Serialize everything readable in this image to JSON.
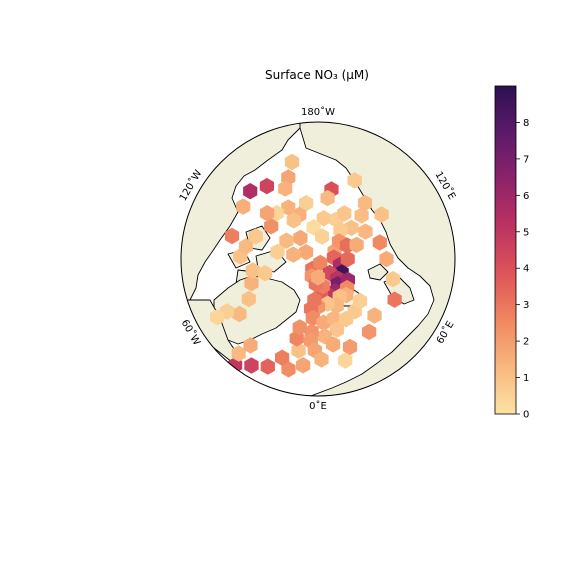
{
  "title": "Surface NO₃ (μM)",
  "longitude_labels": [
    {
      "text": "180˚W",
      "lon": 180
    },
    {
      "text": "120˚E",
      "lon": 120
    },
    {
      "text": "60˚E",
      "lon": 60
    },
    {
      "text": "0˚E",
      "lon": 0
    },
    {
      "text": "60˚W",
      "lon": -60
    },
    {
      "text": "120˚W",
      "lon": -120
    }
  ],
  "colorbar": {
    "min": 0,
    "max": 9,
    "ticks": [
      0,
      1,
      2,
      3,
      4,
      5,
      6,
      7,
      8
    ],
    "colormap": "magma_r",
    "stops": [
      "#fde3a4",
      "#f9b77f",
      "#f08760",
      "#de5459",
      "#bc3362",
      "#8d2369",
      "#5c1a6b",
      "#2c1050"
    ]
  },
  "colors": {
    "land": "#efefdc",
    "ocean": "#ffffff",
    "coast": "#000000",
    "frame": "#000000"
  },
  "chart_data": {
    "type": "heatmap",
    "projection": "north-polar-stereographic",
    "variable": "Surface NO₃",
    "units": "μM",
    "vmin": 0,
    "vmax": 9,
    "cells": [
      {
        "lat": 74.5,
        "lon": 169,
        "value": 4.0
      },
      {
        "lat": 76.5,
        "lon": 171,
        "value": 1.2
      },
      {
        "lat": 77.5,
        "lon": -168,
        "value": 0.6
      },
      {
        "lat": 79.5,
        "lon": -157,
        "value": 1.5
      },
      {
        "lat": 80.0,
        "lon": -148,
        "value": 1.0
      },
      {
        "lat": 77.0,
        "lon": -150,
        "value": 1.4
      },
      {
        "lat": 76.5,
        "lon": -138,
        "value": 0.4
      },
      {
        "lat": 77.5,
        "lon": -125,
        "value": 2.3
      },
      {
        "lat": 75.0,
        "lon": -132,
        "value": 1.8
      },
      {
        "lat": 81.0,
        "lon": 172,
        "value": 0.8
      },
      {
        "lat": 83.0,
        "lon": -172,
        "value": 0.2
      },
      {
        "lat": 80.5,
        "lon": 155,
        "value": 0.6
      },
      {
        "lat": 78.5,
        "lon": 150,
        "value": 0.9
      },
      {
        "lat": 80.0,
        "lon": 133,
        "value": 1.0
      },
      {
        "lat": 82.0,
        "lon": 142,
        "value": 0.7
      },
      {
        "lat": 76.5,
        "lon": 135,
        "value": 1.1
      },
      {
        "lat": 78.0,
        "lon": 120,
        "value": 1.3
      },
      {
        "lat": 84.0,
        "lon": -140,
        "value": 1.7
      },
      {
        "lat": 85.0,
        "lon": 170,
        "value": 0.5
      },
      {
        "lat": 86.0,
        "lon": 115,
        "value": 1.8
      },
      {
        "lat": 84.0,
        "lon": 130,
        "value": 2.2
      },
      {
        "lat": 83.0,
        "lon": 115,
        "value": 3.2
      },
      {
        "lat": 81.0,
        "lon": 110,
        "value": 1.6
      },
      {
        "lat": 86.5,
        "lon": 95,
        "value": 3.4
      },
      {
        "lat": 85.0,
        "lon": 75,
        "value": 5.6
      },
      {
        "lat": 83.5,
        "lon": 90,
        "value": 3.3
      },
      {
        "lat": 87.0,
        "lon": -120,
        "value": 1.7
      },
      {
        "lat": 84.5,
        "lon": -100,
        "value": 1.4
      },
      {
        "lat": 82.0,
        "lon": -120,
        "value": 1.2
      },
      {
        "lat": 81.0,
        "lon": -100,
        "value": 0.6
      },
      {
        "lat": 87.5,
        "lon": -30,
        "value": 3.1
      },
      {
        "lat": 89.0,
        "lon": 30,
        "value": 2.6
      },
      {
        "lat": 84.0,
        "lon": 60,
        "value": 8.5
      },
      {
        "lat": 86.0,
        "lon": 40,
        "value": 4.3
      },
      {
        "lat": 86.0,
        "lon": -20,
        "value": 2.2
      },
      {
        "lat": 84.0,
        "lon": 45,
        "value": 5.2
      },
      {
        "lat": 83.0,
        "lon": 38,
        "value": 7.0
      },
      {
        "lat": 82.0,
        "lon": 28,
        "value": 6.0
      },
      {
        "lat": 81.5,
        "lon": 18,
        "value": 5.0
      },
      {
        "lat": 82.5,
        "lon": 5,
        "value": 3.6
      },
      {
        "lat": 84.0,
        "lon": 10,
        "value": 2.8
      },
      {
        "lat": 84.5,
        "lon": -5,
        "value": 3.0
      },
      {
        "lat": 86.0,
        "lon": 0,
        "value": 1.6
      },
      {
        "lat": 82.0,
        "lon": 55,
        "value": 6.0
      },
      {
        "lat": 81.0,
        "lon": 45,
        "value": 2.5
      },
      {
        "lat": 80.0,
        "lon": 38,
        "value": 1.5
      },
      {
        "lat": 80.5,
        "lon": 30,
        "value": 1.0
      },
      {
        "lat": 79.0,
        "lon": 22,
        "value": 1.3
      },
      {
        "lat": 80.0,
        "lon": 12,
        "value": 0.9
      },
      {
        "lat": 79.5,
        "lon": 0,
        "value": 2.2
      },
      {
        "lat": 81.0,
        "lon": -5,
        "value": 3.0
      },
      {
        "lat": 79.0,
        "lon": -8,
        "value": 3.0
      },
      {
        "lat": 77.0,
        "lon": -5,
        "value": 2.4
      },
      {
        "lat": 76.0,
        "lon": 5,
        "value": 1.6
      },
      {
        "lat": 76.5,
        "lon": 15,
        "value": 1.3
      },
      {
        "lat": 75.5,
        "lon": 25,
        "value": 0.8
      },
      {
        "lat": 76.0,
        "lon": 35,
        "value": 0.8
      },
      {
        "lat": 77.0,
        "lon": 45,
        "value": 0.6
      },
      {
        "lat": 74.0,
        "lon": 15,
        "value": 0.9
      },
      {
        "lat": 73.0,
        "lon": 5,
        "value": 1.4
      },
      {
        "lat": 71.0,
        "lon": 10,
        "value": 1.6
      },
      {
        "lat": 74.0,
        "lon": -5,
        "value": 2.2
      },
      {
        "lat": 72.0,
        "lon": -5,
        "value": 2.0
      },
      {
        "lat": 70.0,
        "lon": -2,
        "value": 1.8
      },
      {
        "lat": 68.0,
        "lon": 2,
        "value": 1.4
      },
      {
        "lat": 69.5,
        "lon": -12,
        "value": 1.0
      },
      {
        "lat": 72.0,
        "lon": -15,
        "value": 2.6
      },
      {
        "lat": 74.5,
        "lon": -15,
        "value": 2.3
      },
      {
        "lat": 66.5,
        "lon": -8,
        "value": 1.8
      },
      {
        "lat": 65.0,
        "lon": -15,
        "value": 2.4
      },
      {
        "lat": 67.0,
        "lon": -20,
        "value": 2.8
      },
      {
        "lat": 64.0,
        "lon": -25,
        "value": 3.5
      },
      {
        "lat": 62.5,
        "lon": -32,
        "value": 4.5
      },
      {
        "lat": 60.5,
        "lon": -38,
        "value": 5.0
      },
      {
        "lat": 63.0,
        "lon": -40,
        "value": 1.2
      },
      {
        "lat": 66.0,
        "lon": -38,
        "value": 1.6
      },
      {
        "lat": 69.0,
        "lon": -55,
        "value": 1.2
      },
      {
        "lat": 72.5,
        "lon": -60,
        "value": 1.0
      },
      {
        "lat": 74.5,
        "lon": -70,
        "value": 1.4
      },
      {
        "lat": 67.0,
        "lon": -60,
        "value": 0.6
      },
      {
        "lat": 64.5,
        "lon": -60,
        "value": 0.4
      },
      {
        "lat": 75.5,
        "lon": -80,
        "value": 1.0
      },
      {
        "lat": 78.0,
        "lon": -75,
        "value": 0.8
      },
      {
        "lat": 73.0,
        "lon": -92,
        "value": 1.0
      },
      {
        "lat": 74.0,
        "lon": -100,
        "value": 1.2
      },
      {
        "lat": 75.5,
        "lon": -110,
        "value": 0.8
      },
      {
        "lat": 70.5,
        "lon": -105,
        "value": 2.8
      },
      {
        "lat": 70.0,
        "lon": -125,
        "value": 1.5
      },
      {
        "lat": 69.0,
        "lon": -135,
        "value": 5.5
      },
      {
        "lat": 70.5,
        "lon": -145,
        "value": 4.5
      },
      {
        "lat": 71.0,
        "lon": -160,
        "value": 1.8
      },
      {
        "lat": 73.0,
        "lon": -155,
        "value": 1.4
      },
      {
        "lat": 68.0,
        "lon": -165,
        "value": 1.0
      },
      {
        "lat": 71.0,
        "lon": 155,
        "value": 0.8
      },
      {
        "lat": 74.0,
        "lon": 140,
        "value": 1.2
      },
      {
        "lat": 73.0,
        "lon": 125,
        "value": 1.0
      },
      {
        "lat": 76.0,
        "lon": 105,
        "value": 2.5
      },
      {
        "lat": 75.0,
        "lon": 90,
        "value": 1.6
      },
      {
        "lat": 73.0,
        "lon": 75,
        "value": 0.8
      },
      {
        "lat": 71.0,
        "lon": 62,
        "value": 3.0
      },
      {
        "lat": 72.5,
        "lon": 45,
        "value": 1.4
      },
      {
        "lat": 70.5,
        "lon": 35,
        "value": 2.2
      },
      {
        "lat": 69.5,
        "lon": 20,
        "value": 2.0
      },
      {
        "lat": 67.0,
        "lon": 15,
        "value": 0.4
      }
    ]
  }
}
